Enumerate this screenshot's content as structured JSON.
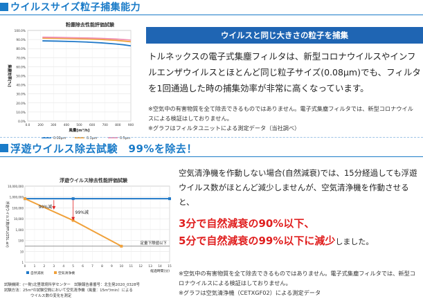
{
  "section1": {
    "title": "ウイルスサイズ粒子捕集能力",
    "chart_title": "粉塵除去性能評価試験",
    "banner": "ウイルスと同じ大きさの粒子を捕集",
    "body": "トルネックスの電子式集塵フィルタは、新型コロナウイルスやインフルエンザウイルスとほとんど同じ粒子サイズ(0.08μm)でも、フィルタを1回通過した時の捕集効率が非常に高くなっています。",
    "note1": "※空気中の有害物質を全て除去できるものではありません。電子式集塵フィルタでは、新型コロナウイルスによる検証はしておりません。",
    "note2": "※グラフはフィルタユニットによる測定データ（当社調べ）"
  },
  "section2": {
    "title": "浮遊ウイルス除去試験　99%を除去！",
    "chart_title": "浮遊ウイルス除去性能評価試験",
    "body": "空気清浄機を作動しない場合(自然減衰)では、15分経過しても浮遊ウイルス数がほとんど減少しませんが、空気清浄機を作動させると、",
    "red1": "3分で自然減衰の90%以下、",
    "red2": "5分で自然減衰の99%以下に減少",
    "red2_tail": "しました。",
    "note1": "※空気中の有害物質を全て除去できるものではありません。電子式集塵フィルタでは、新型コロナウイルスによる検証はしておりません。",
    "note2": "※グラフは空気清浄機（CETXGF02）による測定データ",
    "foot1": "試験機関：(一財)北里環境科学センター　試験報告書番号：北生発2020_0328号",
    "foot2": "試験方法：25m³の試験空間において空気清浄機（風量：15m³/min）による",
    "foot3": "ウイルス数の変化を測定"
  },
  "chart_data": [
    {
      "type": "line",
      "title": "粉塵除去性能評価試験",
      "xlabel": "風量[m³/h]",
      "ylabel": "集塵効率[%]",
      "x_ticks": [
        "0.0",
        "200",
        "300",
        "400",
        "500",
        "600",
        "700",
        "800",
        "900"
      ],
      "y_ticks": [
        "0.0%",
        "10.0%",
        "20.0%",
        "30.0%",
        "40.0%",
        "50.0%",
        "60.0%",
        "70.0%",
        "80.0%",
        "90.0%",
        "100.0%"
      ],
      "xlim": [
        200,
        900
      ],
      "ylim": [
        0,
        100
      ],
      "x": [
        300,
        400,
        500,
        600,
        700,
        800,
        850,
        900
      ],
      "series": [
        {
          "name": "0.08μm",
          "color": "#1f78c8",
          "values": [
            88.5,
            88.2,
            87.8,
            87.2,
            86.3,
            85.0,
            84.2,
            83.0
          ]
        },
        {
          "name": "0.3μm",
          "color": "#f0a13a",
          "values": [
            91.5,
            91.3,
            91.0,
            90.6,
            90.0,
            89.0,
            88.3,
            87.5
          ]
        },
        {
          "name": "0.5μm",
          "color": "#ef8fb0",
          "values": [
            92.5,
            92.3,
            92.0,
            91.7,
            91.2,
            90.5,
            90.0,
            89.3
          ]
        }
      ],
      "grid": true,
      "legend": "bottom"
    },
    {
      "type": "line",
      "title": "浮遊ウイルス除去性能評価試験",
      "xlabel": "経過時間(分)",
      "ylabel": "浮遊ウイルス数(PFU/25L air)",
      "y_scale": "log",
      "x_ticks": [
        "0",
        "1",
        "2",
        "3",
        "4",
        "5",
        "6",
        "7",
        "8",
        "9",
        "10",
        "11",
        "12",
        "13",
        "14",
        "15"
      ],
      "y_ticks": [
        "10,000,000",
        "1,000,000",
        "100,000",
        "10,000",
        "1,000",
        "100",
        "10",
        "1"
      ],
      "xlim": [
        0,
        15
      ],
      "ylim": [
        1,
        10000000
      ],
      "series": [
        {
          "name": "自然減衰",
          "color": "#1f78c8",
          "x": [
            0,
            5,
            15
          ],
          "values": [
            700000,
            700000,
            700000
          ]
        },
        {
          "name": "空気清浄機",
          "color": "#f0a13a",
          "x": [
            0,
            5,
            10
          ],
          "values": [
            700000,
            7000,
            30
          ]
        }
      ],
      "annotations": [
        "90%減",
        "99%減",
        "定量下限値以下"
      ],
      "grid": true,
      "legend": "bottom-left"
    }
  ]
}
